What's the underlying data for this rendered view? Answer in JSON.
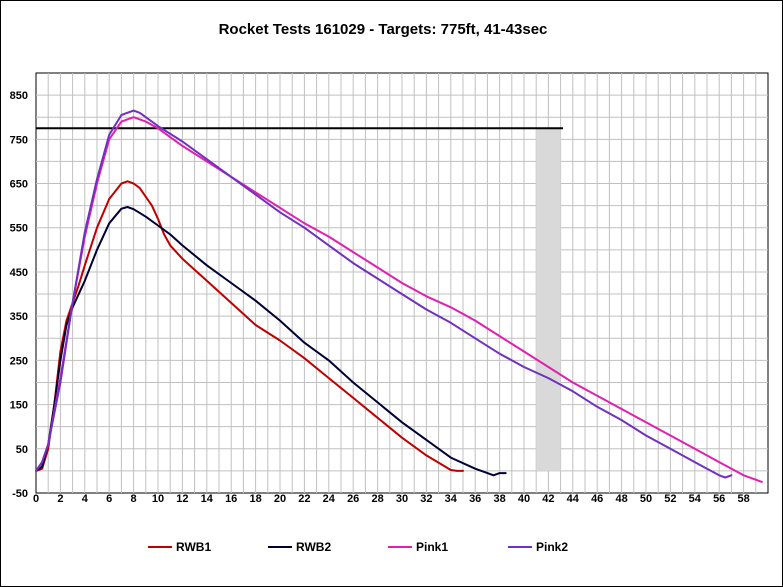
{
  "chart_data": {
    "type": "line",
    "title": "Rocket Tests 161029 - Targets: 775ft, 41-43sec",
    "xlabel": "",
    "ylabel": "",
    "xlim": [
      0,
      60
    ],
    "ylim": [
      -50,
      900
    ],
    "x_ticks": [
      0,
      2,
      4,
      6,
      8,
      10,
      12,
      14,
      16,
      18,
      20,
      22,
      24,
      26,
      28,
      30,
      32,
      34,
      36,
      38,
      40,
      42,
      44,
      46,
      48,
      50,
      52,
      54,
      56,
      58
    ],
    "y_ticks": [
      -50,
      50,
      150,
      250,
      350,
      450,
      550,
      650,
      750,
      850
    ],
    "grid": true,
    "legend_position": "bottom",
    "target": {
      "altitude": 775,
      "altitude_line_x": [
        0,
        43.2
      ],
      "time_window": [
        41,
        43
      ],
      "shade_color": "#d9d9d9"
    },
    "series": [
      {
        "name": "RWB1",
        "color": "#c00000",
        "x": [
          0,
          0.5,
          1,
          1.5,
          2,
          2.5,
          3,
          3.5,
          4,
          5,
          6,
          7,
          7.5,
          8,
          8.5,
          9,
          9.5,
          10,
          10.5,
          11,
          12,
          14,
          16,
          18,
          20,
          22,
          24,
          26,
          28,
          30,
          32,
          34,
          34.5,
          35
        ],
        "y": [
          0,
          5,
          50,
          150,
          270,
          340,
          380,
          420,
          465,
          550,
          615,
          650,
          655,
          650,
          640,
          620,
          600,
          570,
          535,
          510,
          480,
          430,
          380,
          330,
          295,
          255,
          210,
          165,
          120,
          75,
          35,
          2,
          0,
          0
        ]
      },
      {
        "name": "RWB2",
        "color": "#000033",
        "x": [
          0,
          0.5,
          1,
          1.5,
          2,
          2.5,
          3,
          4,
          5,
          6,
          7,
          7.5,
          8,
          9,
          10,
          11,
          12,
          14,
          16,
          18,
          20,
          22,
          24,
          26,
          28,
          30,
          32,
          34,
          36,
          37,
          37.5,
          38,
          38.5
        ],
        "y": [
          0,
          10,
          60,
          150,
          250,
          330,
          370,
          430,
          500,
          560,
          593,
          597,
          592,
          575,
          555,
          535,
          510,
          465,
          425,
          385,
          340,
          290,
          250,
          200,
          155,
          110,
          70,
          30,
          5,
          -5,
          -10,
          -5,
          -5
        ]
      },
      {
        "name": "Pink1",
        "color": "#e020b0",
        "x": [
          0,
          0.5,
          1,
          2,
          3,
          4,
          5,
          6,
          7,
          8,
          9,
          10,
          12,
          14,
          16,
          18,
          20,
          22,
          24,
          26,
          28,
          30,
          32,
          34,
          36,
          38,
          40,
          42,
          44,
          46,
          48,
          50,
          52,
          54,
          56,
          58,
          59,
          59.5
        ],
        "y": [
          0,
          20,
          60,
          210,
          380,
          530,
          650,
          750,
          790,
          800,
          790,
          775,
          735,
          700,
          665,
          630,
          595,
          560,
          530,
          495,
          460,
          425,
          395,
          370,
          340,
          305,
          270,
          235,
          200,
          170,
          140,
          110,
          80,
          50,
          20,
          -10,
          -20,
          -25
        ]
      },
      {
        "name": "Pink2",
        "color": "#7030c0",
        "x": [
          0,
          0.5,
          1,
          2,
          3,
          4,
          5,
          6,
          7,
          8,
          8.5,
          9,
          10,
          12,
          14,
          16,
          18,
          20,
          22,
          24,
          26,
          28,
          30,
          32,
          34,
          36,
          38,
          40,
          42,
          44,
          46,
          48,
          50,
          52,
          54,
          55,
          56,
          56.5,
          57
        ],
        "y": [
          0,
          20,
          60,
          200,
          380,
          540,
          660,
          760,
          805,
          815,
          810,
          800,
          780,
          745,
          705,
          665,
          625,
          585,
          550,
          510,
          470,
          435,
          400,
          365,
          335,
          300,
          265,
          235,
          210,
          180,
          145,
          115,
          80,
          50,
          20,
          5,
          -10,
          -15,
          -10
        ]
      }
    ]
  }
}
